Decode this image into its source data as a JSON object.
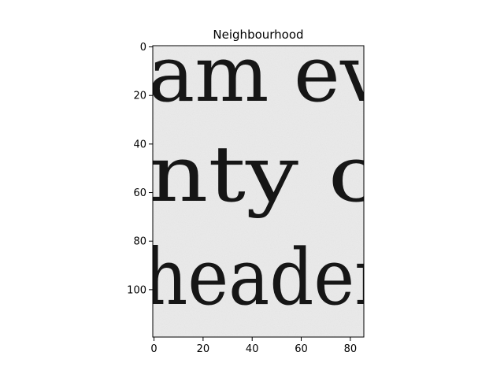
{
  "chart_data": {
    "type": "image",
    "title": "Neighbourhood",
    "xlabel": "",
    "ylabel": "",
    "xlim": [
      -0.5,
      85.5
    ],
    "ylim": [
      119.5,
      -0.5
    ],
    "xticks": [
      0,
      20,
      40,
      60,
      80
    ],
    "yticks": [
      0,
      20,
      40,
      60,
      80,
      100
    ],
    "xtick_labels": [
      "0",
      "20",
      "40",
      "60",
      "80"
    ],
    "ytick_labels": [
      "0",
      "20",
      "40",
      "60",
      "80",
      "100"
    ],
    "grid": false,
    "colormap": "gray",
    "image_content": {
      "description_lines": [
        "am ev",
        "nty o",
        "header"
      ],
      "background": "#ececec",
      "ink": "#161616"
    }
  }
}
